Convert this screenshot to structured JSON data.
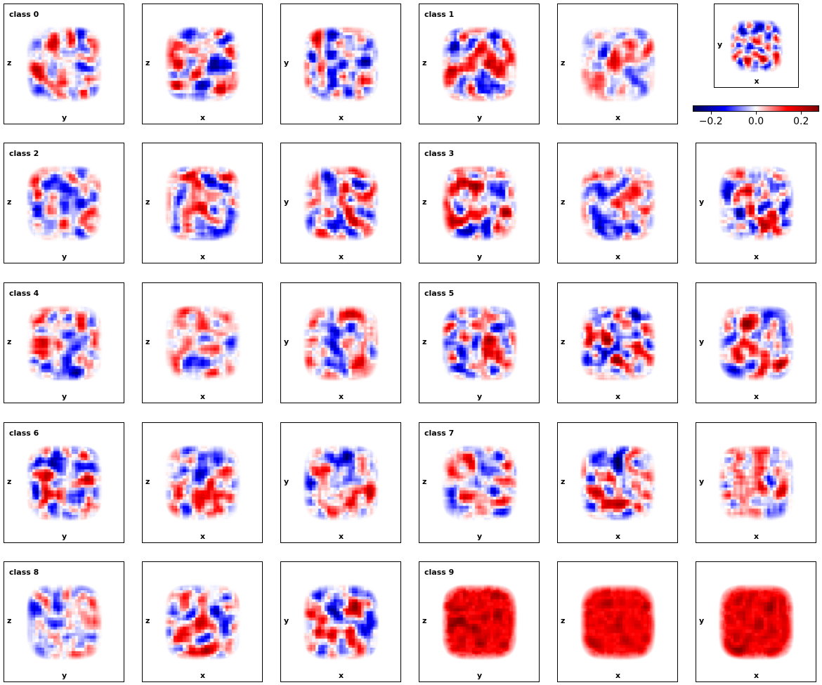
{
  "chart_data": {
    "type": "heatmap",
    "colormap": "seismic",
    "colorbar": {
      "range": [
        -0.28,
        0.28
      ],
      "ticks": [
        -0.2,
        0.0,
        0.2
      ],
      "tick_labels": [
        "−0.2",
        "0.0",
        "0.2"
      ]
    },
    "rows": [
      {
        "panels": [
          {
            "title": "class 0",
            "xlabel": "y",
            "ylabel": "z",
            "seed": 11,
            "polarity": "signed"
          },
          {
            "title": "",
            "xlabel": "x",
            "ylabel": "z",
            "seed": 12,
            "polarity": "signed"
          },
          {
            "title": "",
            "xlabel": "x",
            "ylabel": "y",
            "seed": 13,
            "polarity": "signed"
          },
          {
            "title": "class 1",
            "xlabel": "y",
            "ylabel": "z",
            "seed": 21,
            "polarity": "signed"
          },
          {
            "title": "",
            "xlabel": "x",
            "ylabel": "z",
            "seed": 22,
            "polarity": "signed"
          },
          {
            "title": "",
            "xlabel": "x",
            "ylabel": "y",
            "seed": 23,
            "polarity": "signed",
            "small": true
          }
        ]
      },
      {
        "panels": [
          {
            "title": "class 2",
            "xlabel": "y",
            "ylabel": "z",
            "seed": 31,
            "polarity": "signed"
          },
          {
            "title": "",
            "xlabel": "x",
            "ylabel": "z",
            "seed": 32,
            "polarity": "signed"
          },
          {
            "title": "",
            "xlabel": "x",
            "ylabel": "y",
            "seed": 33,
            "polarity": "signed"
          },
          {
            "title": "class 3",
            "xlabel": "y",
            "ylabel": "z",
            "seed": 41,
            "polarity": "signed"
          },
          {
            "title": "",
            "xlabel": "x",
            "ylabel": "z",
            "seed": 42,
            "polarity": "signed"
          },
          {
            "title": "",
            "xlabel": "x",
            "ylabel": "y",
            "seed": 43,
            "polarity": "signed"
          }
        ]
      },
      {
        "panels": [
          {
            "title": "class 4",
            "xlabel": "y",
            "ylabel": "z",
            "seed": 51,
            "polarity": "signed"
          },
          {
            "title": "",
            "xlabel": "x",
            "ylabel": "z",
            "seed": 52,
            "polarity": "signed"
          },
          {
            "title": "",
            "xlabel": "x",
            "ylabel": "y",
            "seed": 53,
            "polarity": "signed"
          },
          {
            "title": "class 5",
            "xlabel": "y",
            "ylabel": "z",
            "seed": 61,
            "polarity": "signed"
          },
          {
            "title": "",
            "xlabel": "x",
            "ylabel": "z",
            "seed": 62,
            "polarity": "signed"
          },
          {
            "title": "",
            "xlabel": "x",
            "ylabel": "y",
            "seed": 63,
            "polarity": "signed"
          }
        ]
      },
      {
        "panels": [
          {
            "title": "class 6",
            "xlabel": "y",
            "ylabel": "z",
            "seed": 71,
            "polarity": "signed"
          },
          {
            "title": "",
            "xlabel": "x",
            "ylabel": "z",
            "seed": 72,
            "polarity": "signed"
          },
          {
            "title": "",
            "xlabel": "x",
            "ylabel": "y",
            "seed": 73,
            "polarity": "signed"
          },
          {
            "title": "class 7",
            "xlabel": "y",
            "ylabel": "z",
            "seed": 81,
            "polarity": "signed"
          },
          {
            "title": "",
            "xlabel": "x",
            "ylabel": "z",
            "seed": 82,
            "polarity": "signed"
          },
          {
            "title": "",
            "xlabel": "x",
            "ylabel": "y",
            "seed": 83,
            "polarity": "signed"
          }
        ]
      },
      {
        "panels": [
          {
            "title": "class 8",
            "xlabel": "y",
            "ylabel": "z",
            "seed": 91,
            "polarity": "signed"
          },
          {
            "title": "",
            "xlabel": "x",
            "ylabel": "z",
            "seed": 92,
            "polarity": "signed"
          },
          {
            "title": "",
            "xlabel": "x",
            "ylabel": "y",
            "seed": 93,
            "polarity": "signed"
          },
          {
            "title": "class 9",
            "xlabel": "y",
            "ylabel": "z",
            "seed": 101,
            "polarity": "positive"
          },
          {
            "title": "",
            "xlabel": "x",
            "ylabel": "z",
            "seed": 102,
            "polarity": "positive"
          },
          {
            "title": "",
            "xlabel": "x",
            "ylabel": "y",
            "seed": 103,
            "polarity": "positive"
          }
        ]
      }
    ]
  }
}
